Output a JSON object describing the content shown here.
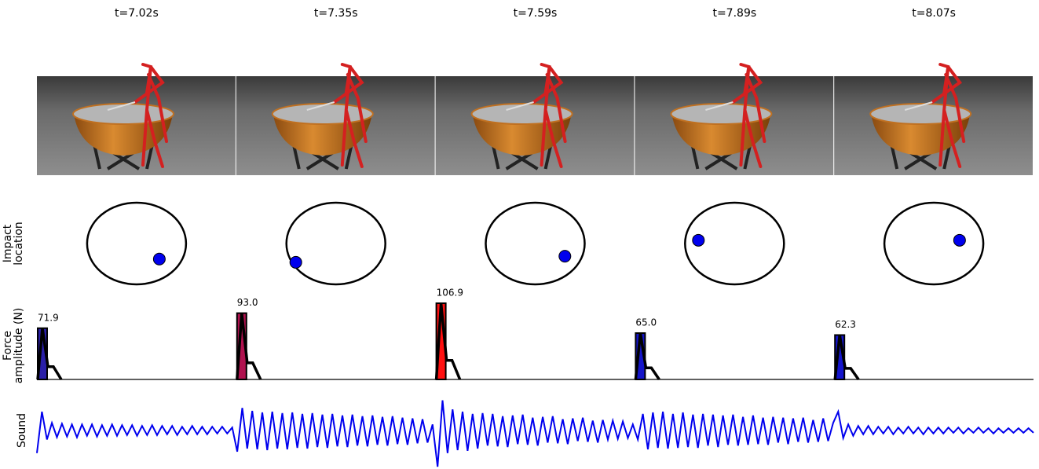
{
  "frames": [
    "t=7.02s",
    "t=7.35s",
    "t=7.59s",
    "t=7.89s",
    "t=8.07s"
  ],
  "chart_data": [
    {
      "type": "scatter",
      "ylabel": [
        "Impact",
        "location"
      ],
      "x": [
        0.46,
        -0.81,
        0.6,
        -0.73,
        0.52
      ],
      "y": [
        -0.38,
        -0.46,
        -0.31,
        0.08,
        0.08
      ],
      "xlim": [
        -1,
        1
      ],
      "ylim": [
        -1,
        1
      ],
      "color": "#0000ee"
    },
    {
      "type": "bar",
      "ylabel": [
        "Force",
        "amplitude (N)"
      ],
      "values": [
        71.9,
        93.0,
        106.9,
        65.0,
        62.3
      ],
      "value_labels": [
        "71.9",
        "93.0",
        "106.9",
        "65.0",
        "62.3"
      ],
      "colors": [
        "#2a1fa8",
        "#b0124f",
        "#ff1010",
        "#1515c8",
        "#1515cc"
      ],
      "ylim": [
        0,
        107
      ]
    },
    {
      "type": "line",
      "ylabel": "Sound",
      "color": "#0000ee",
      "ylim": [
        -50,
        50
      ],
      "values": [
        -30,
        25,
        -12,
        10,
        -9,
        9,
        -8,
        8,
        -9,
        8,
        -7,
        8,
        -8,
        7,
        -7,
        8,
        -7,
        7,
        -6,
        7,
        -7,
        6,
        -6,
        7,
        -6,
        6,
        -5,
        6,
        -6,
        5,
        -5,
        6,
        -5,
        5,
        -5,
        5,
        -4,
        5,
        -4,
        4,
        -28,
        30,
        -24,
        26,
        -25,
        24,
        -26,
        25,
        -24,
        23,
        -25,
        24,
        -23,
        22,
        -24,
        23,
        -22,
        21,
        -23,
        22,
        -21,
        20,
        -22,
        21,
        -20,
        19,
        -21,
        20,
        -19,
        18,
        -20,
        19,
        -18,
        17,
        -19,
        16,
        -17,
        15,
        -16,
        8,
        -48,
        40,
        -30,
        28,
        -26,
        25,
        -27,
        22,
        -24,
        23,
        -20,
        22,
        -21,
        19,
        -22,
        20,
        -18,
        21,
        -19,
        17,
        -20,
        18,
        -16,
        19,
        -17,
        15,
        -18,
        16,
        -14,
        17,
        -15,
        13,
        -16,
        14,
        -12,
        13,
        -11,
        12,
        -10,
        8,
        -12,
        22,
        -25,
        24,
        -23,
        25,
        -24,
        22,
        -23,
        24,
        -22,
        21,
        -23,
        22,
        -20,
        21,
        -22,
        20,
        -19,
        21,
        -20,
        18,
        -19,
        20,
        -18,
        17,
        -19,
        18,
        -16,
        17,
        -18,
        16,
        -15,
        17,
        -16,
        14,
        -15,
        16,
        -14,
        10,
        25,
        -10,
        8,
        -7,
        6,
        -5,
        6,
        -5,
        5,
        -4,
        5,
        -5,
        4,
        -4,
        5,
        -4,
        4,
        -5,
        4,
        -4,
        4,
        -4,
        4,
        -3,
        4,
        -4,
        3,
        -3,
        4,
        -3,
        3,
        -4,
        3,
        -3,
        3,
        -3,
        3,
        -3,
        3,
        -3
      ]
    }
  ]
}
